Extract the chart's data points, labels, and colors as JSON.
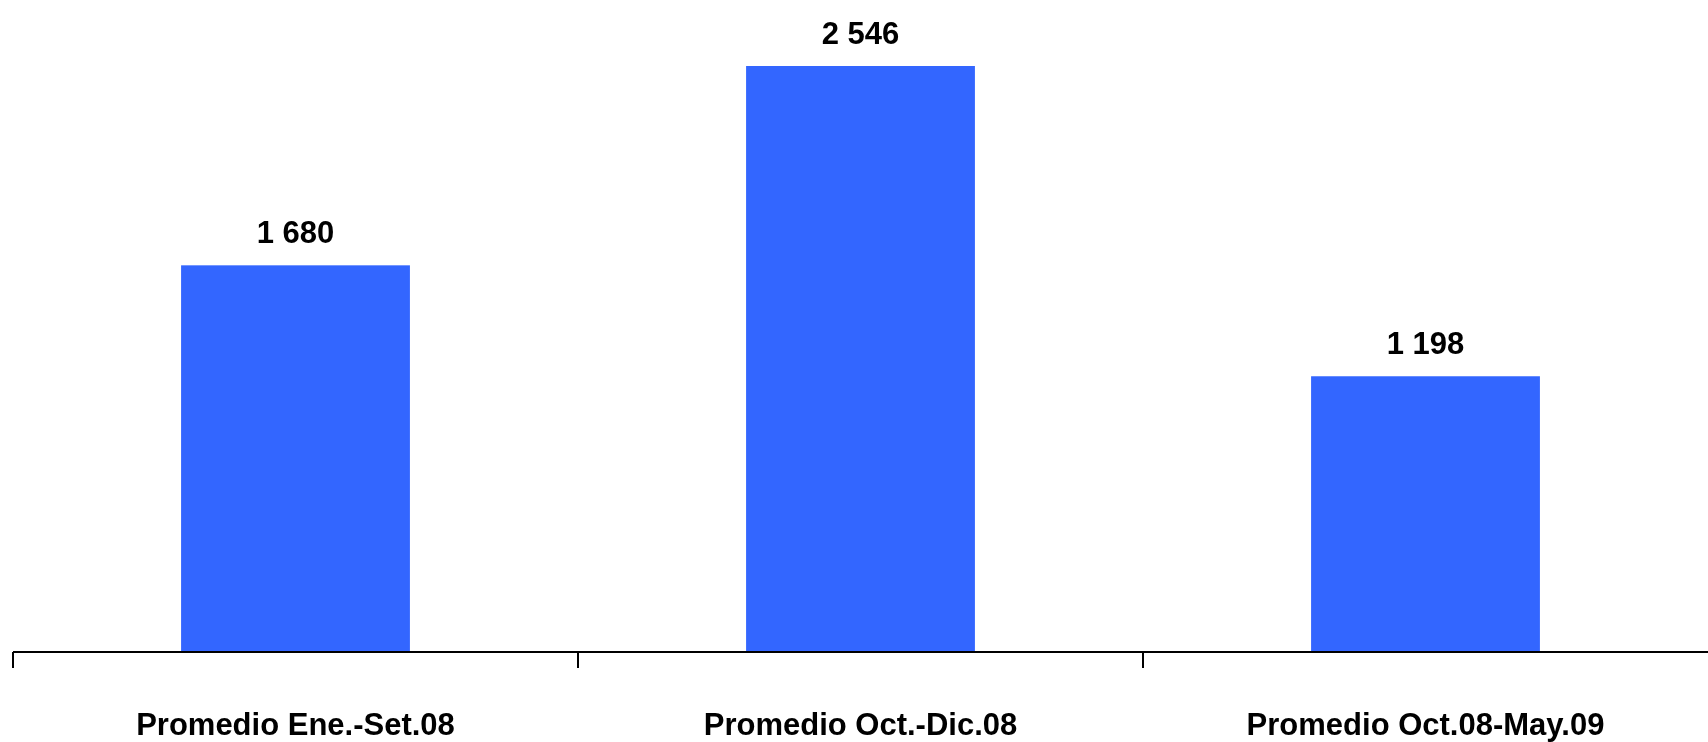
{
  "chart_data": {
    "type": "bar",
    "categories": [
      "Promedio Ene.-Set.08",
      "Promedio Oct.-Dic.08",
      "Promedio Oct.08-May.09"
    ],
    "values": [
      1680,
      2546,
      1198
    ],
    "value_labels": [
      "1 680",
      "2 546",
      "1 198"
    ],
    "color": "#3366ff"
  }
}
